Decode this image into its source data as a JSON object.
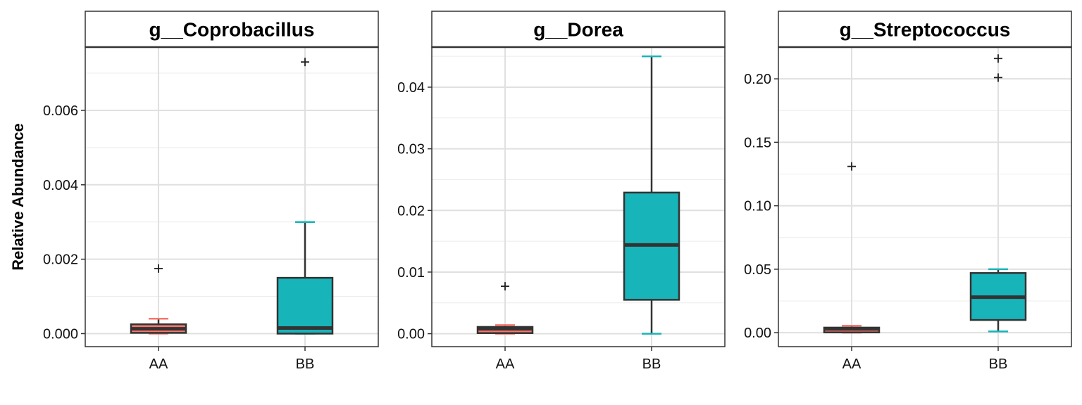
{
  "chart_data": {
    "type": "box",
    "ylabel": "Relative Abundance",
    "xlabel": "",
    "categories": [
      "AA",
      "BB"
    ],
    "colors": {
      "AA": "#F8766D",
      "BB": "#17B4B9"
    },
    "panels": [
      {
        "title": "g__Coprobacillus",
        "ylim": [
          -0.00035,
          0.0077
        ],
        "yticks": [
          0.0,
          0.002,
          0.004,
          0.006
        ],
        "ytick_labels": [
          "0.000",
          "0.002",
          "0.004",
          "0.006"
        ],
        "boxes": [
          {
            "group": "AA",
            "min": 0.0,
            "q1": 2e-05,
            "median": 0.00013,
            "q3": 0.00025,
            "max": 0.0004,
            "outliers": [
              0.00175
            ]
          },
          {
            "group": "BB",
            "min": 0.0,
            "q1": 0.0,
            "median": 0.00015,
            "q3": 0.0015,
            "max": 0.003,
            "outliers": [
              0.0073
            ]
          }
        ]
      },
      {
        "title": "g__Dorea",
        "ylim": [
          -0.0021,
          0.0465
        ],
        "yticks": [
          0.0,
          0.01,
          0.02,
          0.03,
          0.04
        ],
        "ytick_labels": [
          "0.00",
          "0.01",
          "0.02",
          "0.03",
          "0.04"
        ],
        "boxes": [
          {
            "group": "AA",
            "min": 0.0,
            "q1": 0.0001,
            "median": 0.0008,
            "q3": 0.0011,
            "max": 0.0014,
            "outliers": [
              0.0077
            ]
          },
          {
            "group": "BB",
            "min": 0.0,
            "q1": 0.0055,
            "median": 0.0144,
            "q3": 0.0229,
            "max": 0.045,
            "outliers": []
          }
        ]
      },
      {
        "title": "g__Streptococcus",
        "ylim": [
          -0.011,
          0.225
        ],
        "yticks": [
          0.0,
          0.05,
          0.1,
          0.15,
          0.2
        ],
        "ytick_labels": [
          "0.00",
          "0.05",
          "0.10",
          "0.15",
          "0.20"
        ],
        "boxes": [
          {
            "group": "AA",
            "min": 0.0,
            "q1": 0.0002,
            "median": 0.003,
            "q3": 0.004,
            "max": 0.0055,
            "outliers": [
              0.131
            ]
          },
          {
            "group": "BB",
            "min": 0.001,
            "q1": 0.01,
            "median": 0.028,
            "q3": 0.047,
            "max": 0.05,
            "outliers": [
              0.201,
              0.216
            ]
          }
        ]
      }
    ],
    "grid": true
  }
}
